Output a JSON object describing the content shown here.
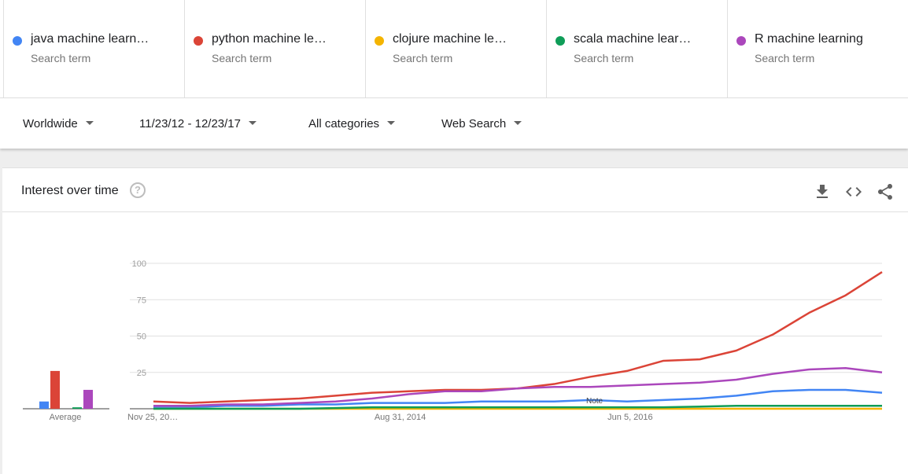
{
  "terms": [
    {
      "name": "java machine learn…",
      "sub": "Search term",
      "color": "#4285f4"
    },
    {
      "name": "python machine le…",
      "sub": "Search term",
      "color": "#db4437"
    },
    {
      "name": "clojure machine le…",
      "sub": "Search term",
      "color": "#f4b400"
    },
    {
      "name": "scala machine lear…",
      "sub": "Search term",
      "color": "#0f9d58"
    },
    {
      "name": "R machine learning",
      "sub": "Search term",
      "color": "#ab47bc"
    }
  ],
  "filters": {
    "region": "Worldwide",
    "date_range": "11/23/12 - 12/23/17",
    "category": "All categories",
    "search_type": "Web Search"
  },
  "card": {
    "title": "Interest over time",
    "help_glyph": "?"
  },
  "icons": [
    "download-icon",
    "embed-code-icon",
    "share-icon",
    "help-icon",
    "dropdown-caret-icon"
  ],
  "chart_data": {
    "type": "line",
    "ylim": [
      0,
      100
    ],
    "yticks": [
      "100",
      "75",
      "50",
      "25"
    ],
    "xticks": [
      {
        "label": "Nov 25, 20…",
        "t": 0.0
      },
      {
        "label": "Aug 31, 2014",
        "t": 0.34
      },
      {
        "label": "Jun 5, 2016",
        "t": 0.66
      }
    ],
    "note_label": "Note",
    "average": {
      "label": "Average",
      "values": [
        5,
        26,
        0,
        1,
        13
      ]
    },
    "series": [
      {
        "name": "java machine learning",
        "color": "#4285f4",
        "x": [
          0,
          0.05,
          0.1,
          0.15,
          0.2,
          0.25,
          0.3,
          0.35,
          0.4,
          0.45,
          0.5,
          0.55,
          0.6,
          0.65,
          0.7,
          0.75,
          0.8,
          0.85,
          0.9,
          0.95,
          1.0
        ],
        "values": [
          1,
          1,
          2,
          2,
          3,
          3,
          4,
          4,
          4,
          5,
          5,
          5,
          6,
          5,
          6,
          7,
          9,
          12,
          13,
          13,
          11
        ]
      },
      {
        "name": "python machine learning",
        "color": "#db4437",
        "x": [
          0,
          0.05,
          0.1,
          0.15,
          0.2,
          0.25,
          0.3,
          0.35,
          0.4,
          0.45,
          0.5,
          0.55,
          0.6,
          0.65,
          0.7,
          0.75,
          0.8,
          0.85,
          0.9,
          0.95,
          1.0
        ],
        "values": [
          5,
          4,
          5,
          6,
          7,
          9,
          11,
          12,
          13,
          13,
          14,
          17,
          22,
          26,
          33,
          34,
          40,
          51,
          66,
          78,
          94
        ]
      },
      {
        "name": "clojure machine learning",
        "color": "#f4b400",
        "x": [
          0,
          0.1,
          0.2,
          0.3,
          0.4,
          0.5,
          0.6,
          0.7,
          0.8,
          0.9,
          1.0
        ],
        "values": [
          0,
          0,
          0,
          0,
          0,
          0,
          0,
          0,
          0,
          0,
          0
        ]
      },
      {
        "name": "scala machine learning",
        "color": "#0f9d58",
        "x": [
          0,
          0.1,
          0.2,
          0.3,
          0.4,
          0.5,
          0.6,
          0.7,
          0.8,
          0.9,
          1.0
        ],
        "values": [
          0,
          0,
          0,
          1,
          1,
          1,
          1,
          1,
          2,
          2,
          2
        ]
      },
      {
        "name": "R machine learning",
        "color": "#ab47bc",
        "x": [
          0,
          0.05,
          0.1,
          0.15,
          0.2,
          0.25,
          0.3,
          0.35,
          0.4,
          0.45,
          0.5,
          0.55,
          0.6,
          0.65,
          0.7,
          0.75,
          0.8,
          0.85,
          0.9,
          0.95,
          1.0
        ],
        "values": [
          2,
          2,
          3,
          3,
          4,
          5,
          7,
          10,
          12,
          12,
          14,
          15,
          15,
          16,
          17,
          18,
          20,
          24,
          27,
          28,
          25
        ]
      }
    ]
  }
}
